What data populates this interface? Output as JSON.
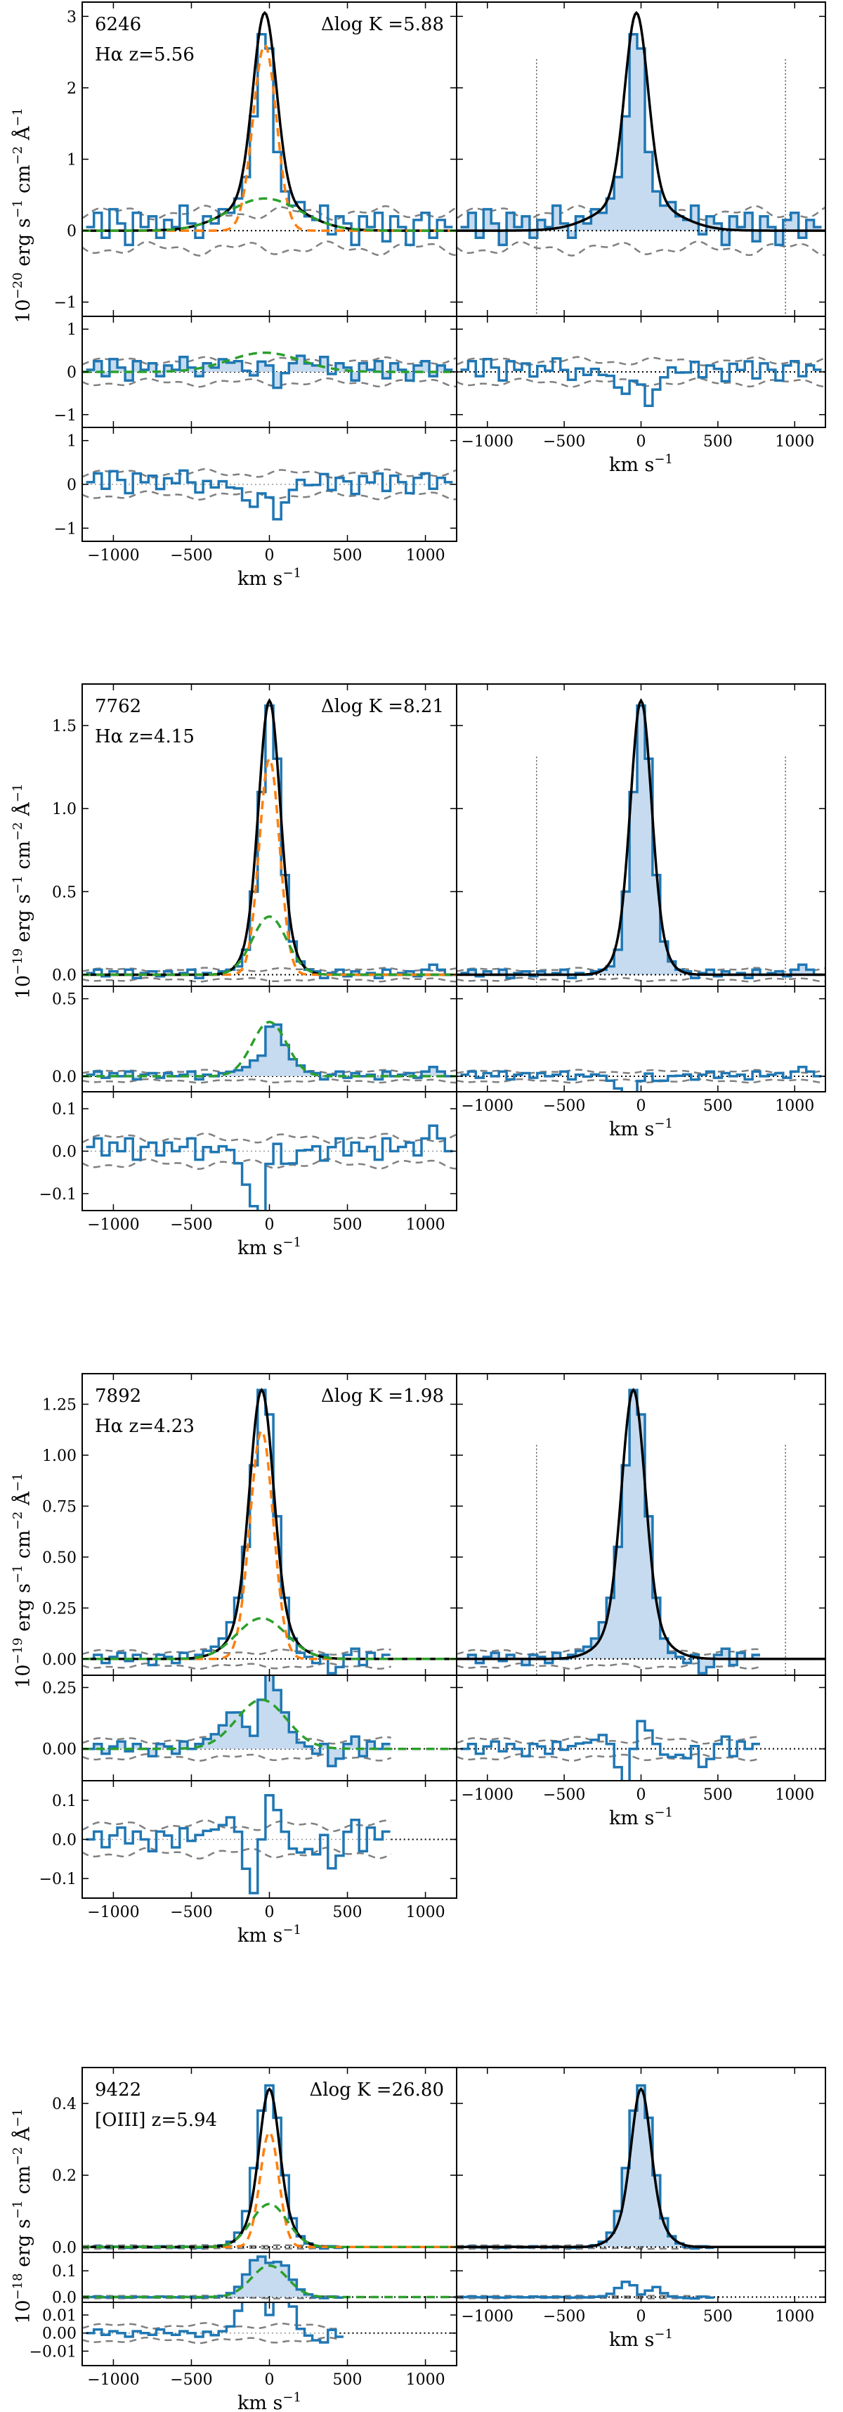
{
  "figure": {
    "colors": {
      "data": "#1f77b4",
      "fill": "#c6dbef",
      "model": "#000000",
      "narrow": "#ff7f0e",
      "broad": "#2ca02c",
      "noise": "#808080"
    },
    "common": {
      "xlabel": "km s",
      "xlabel_sup": "−1",
      "xlim": [
        -1200,
        1200
      ],
      "xticks": [
        -1000,
        -500,
        0,
        500,
        1000
      ]
    }
  },
  "chart_data": [
    {
      "type": "line",
      "id": 6246,
      "title_id": "6246",
      "line_label": "Hα z=5.56",
      "dlogk_label": "Δlog K =5.88",
      "ylabel_prefix": "10",
      "ylabel_exp": "−20",
      "ylabel_units": " erg s",
      "ylabel_units2": " cm",
      "ylabel_units3": " Å",
      "model": {
        "narrow_amp": 2.6,
        "narrow_sigma": 75,
        "broad_amp": 0.45,
        "broad_sigma": 230,
        "center": -30
      },
      "main": {
        "ylim": [
          -1.2,
          3.2
        ],
        "yticks": [
          -1,
          0,
          1,
          2,
          3
        ],
        "yticklabels": [
          "−1",
          "0",
          "1",
          "2",
          "3"
        ]
      },
      "resid_broad": {
        "ylim": [
          -1.3,
          1.3
        ],
        "yticks": [
          -1,
          0,
          1
        ],
        "yticklabels": [
          "−1",
          "0",
          "1"
        ]
      },
      "resid_full": {
        "ylim": [
          -1.3,
          1.3
        ],
        "yticks": [
          -1,
          0,
          1
        ],
        "yticklabels": [
          "−1",
          "0",
          "1"
        ]
      },
      "noise_level": 0.25,
      "data_xmax": 1200,
      "vlines": [
        -680,
        940
      ],
      "series": [
        {
          "name": "data",
          "points": [
            [
              -1150,
              0.05
            ],
            [
              -1100,
              0.25
            ],
            [
              -1050,
              -0.1
            ],
            [
              -1000,
              0.3
            ],
            [
              -950,
              0.1
            ],
            [
              -900,
              -0.2
            ],
            [
              -850,
              0.25
            ],
            [
              -800,
              0.05
            ],
            [
              -750,
              0.2
            ],
            [
              -700,
              -0.1
            ],
            [
              -650,
              0.15
            ],
            [
              -600,
              0.05
            ],
            [
              -550,
              0.35
            ],
            [
              -500,
              0.1
            ],
            [
              -450,
              -0.1
            ],
            [
              -400,
              0.2
            ],
            [
              -350,
              0.1
            ],
            [
              -300,
              0.3
            ],
            [
              -250,
              0.25
            ],
            [
              -200,
              0.45
            ],
            [
              -150,
              0.75
            ],
            [
              -100,
              1.6
            ],
            [
              -50,
              2.75
            ],
            [
              0,
              2.55
            ],
            [
              50,
              1.1
            ],
            [
              100,
              0.55
            ],
            [
              150,
              0.35
            ],
            [
              200,
              0.4
            ],
            [
              250,
              0.2
            ],
            [
              300,
              0.15
            ],
            [
              350,
              0.35
            ],
            [
              400,
              -0.05
            ],
            [
              450,
              0.2
            ],
            [
              500,
              0.1
            ],
            [
              550,
              -0.2
            ],
            [
              600,
              0.2
            ],
            [
              650,
              0.05
            ],
            [
              700,
              0.25
            ],
            [
              750,
              -0.15
            ],
            [
              800,
              0.2
            ],
            [
              850,
              0.05
            ],
            [
              900,
              -0.2
            ],
            [
              950,
              0.15
            ],
            [
              1000,
              0.25
            ],
            [
              1050,
              -0.1
            ],
            [
              1100,
              0.15
            ],
            [
              1150,
              0.05
            ]
          ]
        }
      ]
    },
    {
      "type": "line",
      "id": 7762,
      "title_id": "7762",
      "line_label": "Hα z=4.15",
      "dlogk_label": "Δlog K =8.21",
      "ylabel_prefix": "10",
      "ylabel_exp": "−19",
      "ylabel_units": " erg s",
      "ylabel_units2": " cm",
      "ylabel_units3": " Å",
      "model": {
        "narrow_amp": 1.3,
        "narrow_sigma": 65,
        "broad_amp": 0.35,
        "broad_sigma": 110,
        "center": 0
      },
      "main": {
        "ylim": [
          -0.07,
          1.75
        ],
        "yticks": [
          0.0,
          0.5,
          1.0,
          1.5
        ],
        "yticklabels": [
          "0.0",
          "0.5",
          "1.0",
          "1.5"
        ]
      },
      "resid_broad": {
        "ylim": [
          -0.1,
          0.58
        ],
        "yticks": [
          0.0,
          0.5
        ],
        "yticklabels": [
          "0.0",
          "0.5"
        ]
      },
      "resid_full": {
        "ylim": [
          -0.14,
          0.14
        ],
        "yticks": [
          -0.1,
          0.0,
          0.1
        ],
        "yticklabels": [
          "−0.1",
          "0.0",
          "0.1"
        ]
      },
      "noise_level": 0.03,
      "data_xmax": 1200,
      "vlines": [
        -680,
        940
      ],
      "series": [
        {
          "name": "data",
          "points": [
            [
              -1150,
              0.01
            ],
            [
              -1100,
              0.03
            ],
            [
              -1050,
              -0.01
            ],
            [
              -1000,
              0.02
            ],
            [
              -950,
              0.0
            ],
            [
              -900,
              0.03
            ],
            [
              -850,
              -0.02
            ],
            [
              -800,
              0.01
            ],
            [
              -750,
              0.02
            ],
            [
              -700,
              -0.01
            ],
            [
              -650,
              0.02
            ],
            [
              -600,
              0.0
            ],
            [
              -550,
              0.01
            ],
            [
              -500,
              0.03
            ],
            [
              -450,
              -0.02
            ],
            [
              -400,
              0.01
            ],
            [
              -350,
              0.0
            ],
            [
              -300,
              0.02
            ],
            [
              -250,
              0.03
            ],
            [
              -200,
              0.05
            ],
            [
              -150,
              0.15
            ],
            [
              -100,
              0.5
            ],
            [
              -50,
              1.1
            ],
            [
              0,
              1.62
            ],
            [
              50,
              1.3
            ],
            [
              100,
              0.6
            ],
            [
              150,
              0.2
            ],
            [
              200,
              0.08
            ],
            [
              250,
              0.03
            ],
            [
              300,
              0.02
            ],
            [
              350,
              -0.02
            ],
            [
              400,
              0.01
            ],
            [
              450,
              0.03
            ],
            [
              500,
              -0.01
            ],
            [
              550,
              0.02
            ],
            [
              600,
              0.0
            ],
            [
              650,
              0.01
            ],
            [
              700,
              -0.02
            ],
            [
              750,
              0.03
            ],
            [
              800,
              0.0
            ],
            [
              850,
              0.01
            ],
            [
              900,
              0.02
            ],
            [
              950,
              -0.01
            ],
            [
              1000,
              0.03
            ],
            [
              1050,
              0.06
            ],
            [
              1100,
              0.03
            ],
            [
              1150,
              0.0
            ]
          ]
        }
      ]
    },
    {
      "type": "line",
      "id": 7892,
      "title_id": "7892",
      "line_label": "Hα z=4.23",
      "dlogk_label": "Δlog K =1.98",
      "ylabel_prefix": "10",
      "ylabel_exp": "−19",
      "ylabel_units": " erg s",
      "ylabel_units2": " cm",
      "ylabel_units3": " Å",
      "model": {
        "narrow_amp": 1.12,
        "narrow_sigma": 75,
        "broad_amp": 0.2,
        "broad_sigma": 160,
        "center": -50
      },
      "main": {
        "ylim": [
          -0.08,
          1.4
        ],
        "yticks": [
          0.0,
          0.25,
          0.5,
          0.75,
          1.0,
          1.25
        ],
        "yticklabels": [
          "0.00",
          "0.25",
          "0.50",
          "0.75",
          "1.00",
          "1.25"
        ]
      },
      "resid_broad": {
        "ylim": [
          -0.13,
          0.3
        ],
        "yticks": [
          0.0,
          0.25
        ],
        "yticklabels": [
          "0.00",
          "0.25"
        ]
      },
      "resid_full": {
        "ylim": [
          -0.15,
          0.15
        ],
        "yticks": [
          -0.1,
          0.0,
          0.1
        ],
        "yticklabels": [
          "−0.1",
          "0.0",
          "0.1"
        ]
      },
      "noise_level": 0.035,
      "data_xmax": 780,
      "vlines": [
        -680,
        940
      ],
      "series": [
        {
          "name": "data",
          "points": [
            [
              -1150,
              0.0
            ],
            [
              -1100,
              0.02
            ],
            [
              -1050,
              -0.02
            ],
            [
              -1000,
              0.01
            ],
            [
              -950,
              0.03
            ],
            [
              -900,
              -0.01
            ],
            [
              -850,
              0.02
            ],
            [
              -800,
              0.0
            ],
            [
              -750,
              -0.03
            ],
            [
              -700,
              0.02
            ],
            [
              -650,
              0.01
            ],
            [
              -600,
              -0.02
            ],
            [
              -550,
              0.03
            ],
            [
              -500,
              0.0
            ],
            [
              -450,
              0.02
            ],
            [
              -400,
              0.04
            ],
            [
              -350,
              0.06
            ],
            [
              -300,
              0.1
            ],
            [
              -250,
              0.18
            ],
            [
              -200,
              0.3
            ],
            [
              -150,
              0.55
            ],
            [
              -100,
              0.95
            ],
            [
              -50,
              1.32
            ],
            [
              0,
              1.2
            ],
            [
              50,
              0.7
            ],
            [
              100,
              0.3
            ],
            [
              150,
              0.1
            ],
            [
              200,
              0.03
            ],
            [
              250,
              0.01
            ],
            [
              300,
              -0.02
            ],
            [
              350,
              0.02
            ],
            [
              400,
              -0.07
            ],
            [
              450,
              -0.04
            ],
            [
              500,
              0.02
            ],
            [
              550,
              0.05
            ],
            [
              600,
              -0.03
            ],
            [
              650,
              0.03
            ],
            [
              700,
              0.0
            ],
            [
              750,
              0.02
            ]
          ]
        }
      ]
    },
    {
      "type": "line",
      "id": 9422,
      "title_id": "9422",
      "line_label": "[OIII] z=5.94",
      "dlogk_label": "Δlog K =26.80",
      "ylabel_prefix": "10",
      "ylabel_exp": "−18",
      "ylabel_units": " erg s",
      "ylabel_units2": " cm",
      "ylabel_units3": " Å",
      "model": {
        "narrow_amp": 0.32,
        "narrow_sigma": 60,
        "broad_amp": 0.12,
        "broad_sigma": 115,
        "center": 0
      },
      "main": {
        "ylim": [
          -0.015,
          0.5
        ],
        "yticks": [
          0.0,
          0.2,
          0.4
        ],
        "yticklabels": [
          "0.0",
          "0.2",
          "0.4"
        ]
      },
      "resid_broad": {
        "ylim": [
          -0.02,
          0.17
        ],
        "yticks": [
          0.0,
          0.1
        ],
        "yticklabels": [
          "0.0",
          "0.1"
        ]
      },
      "resid_full": {
        "ylim": [
          -0.018,
          0.017
        ],
        "yticks": [
          -0.01,
          0.0,
          0.01
        ],
        "yticklabels": [
          "−0.01",
          "0.00",
          "0.01"
        ]
      },
      "noise_level": 0.004,
      "data_xmax": 450,
      "vlines": [],
      "series": [
        {
          "name": "data",
          "points": [
            [
              -1150,
              0.0
            ],
            [
              -1100,
              0.002
            ],
            [
              -1050,
              -0.001
            ],
            [
              -1000,
              0.001
            ],
            [
              -950,
              0.0
            ],
            [
              -900,
              -0.002
            ],
            [
              -850,
              0.001
            ],
            [
              -800,
              0.0
            ],
            [
              -750,
              -0.001
            ],
            [
              -700,
              0.002
            ],
            [
              -650,
              0.0
            ],
            [
              -600,
              -0.001
            ],
            [
              -550,
              0.001
            ],
            [
              -500,
              0.0
            ],
            [
              -450,
              -0.002
            ],
            [
              -400,
              0.001
            ],
            [
              -350,
              0.0
            ],
            [
              -300,
              0.005
            ],
            [
              -250,
              0.015
            ],
            [
              -200,
              0.04
            ],
            [
              -150,
              0.1
            ],
            [
              -100,
              0.22
            ],
            [
              -50,
              0.38
            ],
            [
              0,
              0.45
            ],
            [
              50,
              0.36
            ],
            [
              100,
              0.2
            ],
            [
              150,
              0.08
            ],
            [
              200,
              0.03
            ],
            [
              250,
              0.01
            ],
            [
              300,
              0.0
            ],
            [
              350,
              -0.004
            ],
            [
              400,
              0.002
            ],
            [
              450,
              -0.002
            ]
          ]
        }
      ]
    }
  ]
}
